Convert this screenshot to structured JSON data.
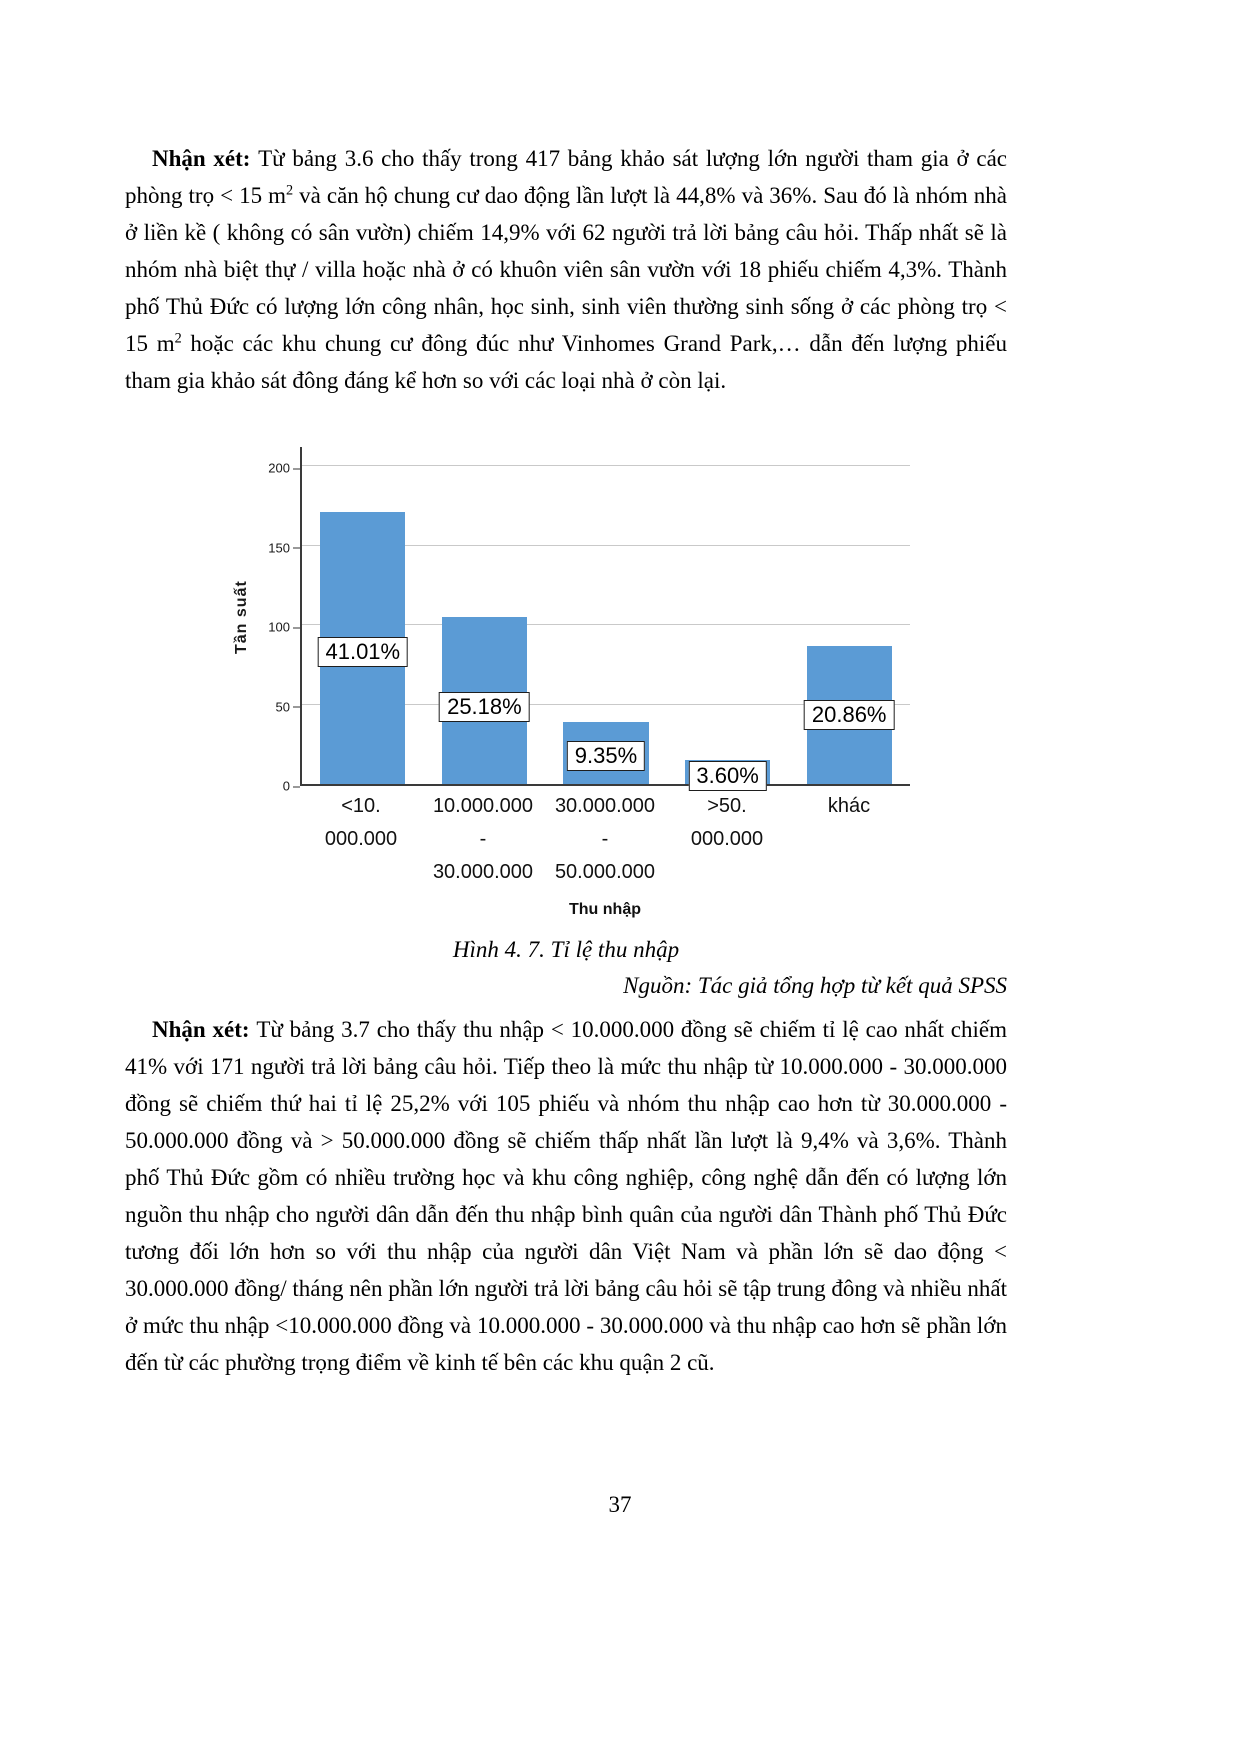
{
  "page": {
    "number": "37"
  },
  "paragraph1": {
    "runs": [
      {
        "t": "Nhận xét: ",
        "b": true
      },
      {
        "t": "Từ bảng 3.6 cho thấy trong 417 bảng khảo sát lượng lớn người tham gia ở các phòng trọ < 15 m"
      },
      {
        "t": "2",
        "sup": true
      },
      {
        "t": " và căn hộ chung cư dao động lần lượt là 44,8% và 36%. Sau đó là nhóm nhà ở liền kề ( không có sân vườn) chiếm 14,9% với 62 người trả lời bảng câu hỏi. Thấp nhất sẽ là nhóm nhà biệt thự / villa hoặc nhà ở có khuôn viên sân vườn với 18 phiếu chiếm 4,3%. Thành phố Thủ Đức có lượng lớn công nhân, học sinh, sinh viên thường sinh sống ở các phòng trọ < 15 m"
      },
      {
        "t": "2",
        "sup": true
      },
      {
        "t": " hoặc các khu chung cư đông đúc như Vinhomes Grand Park,… dẫn đến lượng phiếu tham gia khảo sát đông đáng kể hơn so với các loại nhà ở còn lại."
      }
    ]
  },
  "figure": {
    "caption": "Hình 4. 7. Tỉ lệ thu nhập",
    "source": "Nguồn: Tác giả tổng hợp từ kết quả SPSS"
  },
  "chart_data": {
    "type": "bar",
    "title": "",
    "xlabel": "Thu nhập",
    "ylabel": "Tần suất",
    "categories": [
      "<10.000.000",
      "10.000.000 - 30.000.000",
      "30.000.000 - 50.000.000",
      ">50.000.000",
      "khác"
    ],
    "category_label_lines": [
      [
        "<10.",
        "000.000"
      ],
      [
        "10.000.000",
        "-",
        "30.000.000"
      ],
      [
        "30.000.000",
        "-",
        "50.000.000"
      ],
      [
        ">50.",
        "000.000"
      ],
      [
        "khác"
      ]
    ],
    "values": [
      171,
      105,
      39,
      15,
      87
    ],
    "bar_labels": [
      "41.01%",
      "25.18%",
      "9.35%",
      "3.60%",
      "20.86%"
    ],
    "yticks": [
      0,
      50,
      100,
      150,
      200
    ],
    "ylim": [
      0,
      212
    ],
    "grid": true,
    "legend": "none",
    "bar_color": "#5B9BD5",
    "label_offsets_units": [
      84,
      49,
      18,
      6,
      44
    ]
  },
  "paragraph2": {
    "runs": [
      {
        "t": "Nhận xét: ",
        "b": true
      },
      {
        "t": "Từ bảng 3.7 cho thấy thu nhập < 10.000.000 đồng sẽ chiếm tỉ lệ cao nhất chiếm 41% với 171 người trả lời bảng câu hỏi. Tiếp theo là mức thu nhập từ 10.000.000 - 30.000.000 đồng sẽ chiếm thứ hai tỉ lệ 25,2% với 105 phiếu và nhóm thu nhập cao hơn từ 30.000.000 - 50.000.000 đồng và > 50.000.000 đồng sẽ chiếm thấp nhất lần lượt là 9,4% và 3,6%. Thành phố Thủ Đức gồm có nhiều trường học và khu công nghiệp, công nghệ dẫn đến có lượng lớn nguồn thu nhập cho người dân dẫn đến thu nhập bình quân của người dân Thành phố Thủ Đức tương đối lớn hơn so với thu nhập của người dân Việt Nam và phần lớn sẽ dao động < 30.000.000 đồng/ tháng nên phần lớn người trả lời bảng câu hỏi sẽ tập trung đông và nhiều nhất ở mức thu nhập <10.000.000 đồng và 10.000.000 - 30.000.000 và thu nhập cao hơn sẽ phần lớn đến từ các phường trọng điểm về kinh tế bên các khu quận 2 cũ."
      }
    ]
  }
}
